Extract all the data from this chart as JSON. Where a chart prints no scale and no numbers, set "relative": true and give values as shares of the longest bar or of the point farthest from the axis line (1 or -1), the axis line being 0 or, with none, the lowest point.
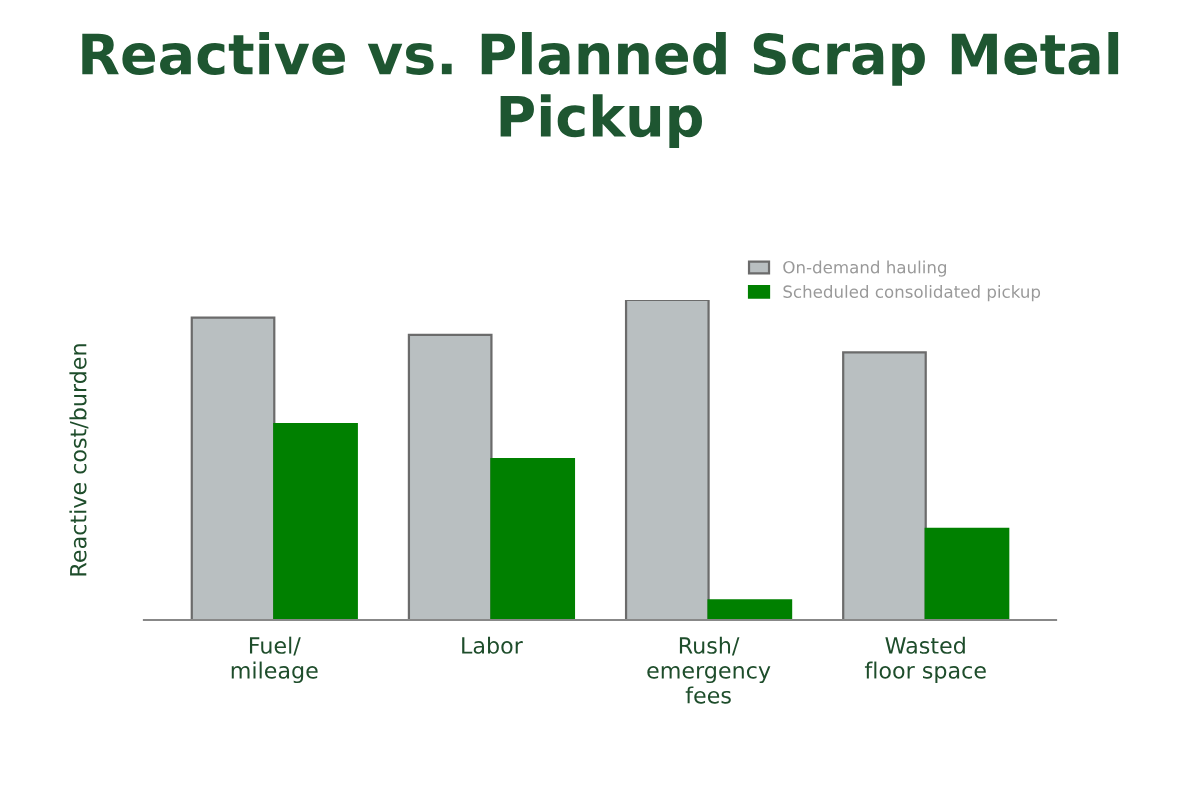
{
  "chart_data": {
    "type": "bar",
    "title": "Reactive vs. Planned Scrap Metal Pickup",
    "ylabel": "Reactive cost/burden",
    "relative": true,
    "categories": [
      "Fuel/\nmileage",
      "Labor",
      "Rush/\nemergency\nfees",
      "Wasted\nfloor space"
    ],
    "series": [
      {
        "name": "On-demand hauling",
        "color": "#b9bfc1",
        "values": [
          0.945,
          0.891,
          1,
          0.836
        ]
      },
      {
        "name": "Scheduled consolidated pickup",
        "color": "#008000",
        "values": [
          0.612,
          0.503,
          0.061,
          0.285
        ]
      }
    ],
    "legend": "top right",
    "grid": false
  }
}
